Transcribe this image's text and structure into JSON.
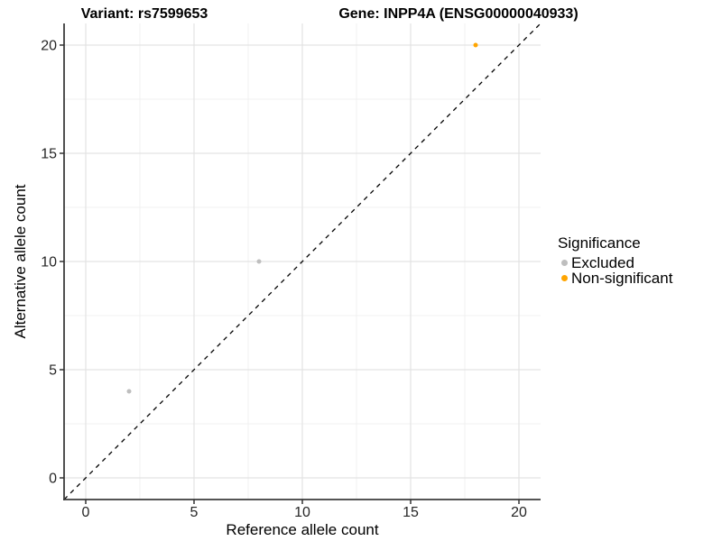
{
  "chart_data": {
    "type": "scatter",
    "titles": {
      "left": "Variant: rs7599653",
      "right": "Gene: INPP4A (ENSG00000040933)"
    },
    "xlabel": "Reference allele count",
    "ylabel": "Alternative allele count",
    "xlim": [
      -1,
      21
    ],
    "ylim": [
      -1,
      21
    ],
    "x_ticks": [
      0,
      5,
      10,
      15,
      20
    ],
    "y_ticks": [
      0,
      5,
      10,
      15,
      20
    ],
    "x_minor_ticks": [
      2.5,
      7.5,
      12.5,
      17.5
    ],
    "y_minor_ticks": [
      2.5,
      7.5,
      12.5,
      17.5
    ],
    "grid": "major+minor",
    "identity_line": {
      "equation": "y = x",
      "style": "dashed",
      "color": "#000000"
    },
    "series": [
      {
        "name": "Excluded",
        "color": "#BEBEBE",
        "points": [
          {
            "x": 2,
            "y": 4
          },
          {
            "x": 8,
            "y": 10
          }
        ]
      },
      {
        "name": "Non-significant",
        "color": "#FFA500",
        "points": [
          {
            "x": 18,
            "y": 20
          }
        ]
      }
    ],
    "legend": {
      "title": "Significance",
      "position": "right",
      "items": [
        {
          "label": "Excluded",
          "color": "#BEBEBE"
        },
        {
          "label": "Non-significant",
          "color": "#FFA500"
        }
      ]
    },
    "style": {
      "major_grid_color": "#E3E3E3",
      "minor_grid_color": "#F0F0F0",
      "axis_line_color": "#3C3C3C",
      "tick_color": "#333333",
      "point_radius_px": 2.5
    }
  }
}
